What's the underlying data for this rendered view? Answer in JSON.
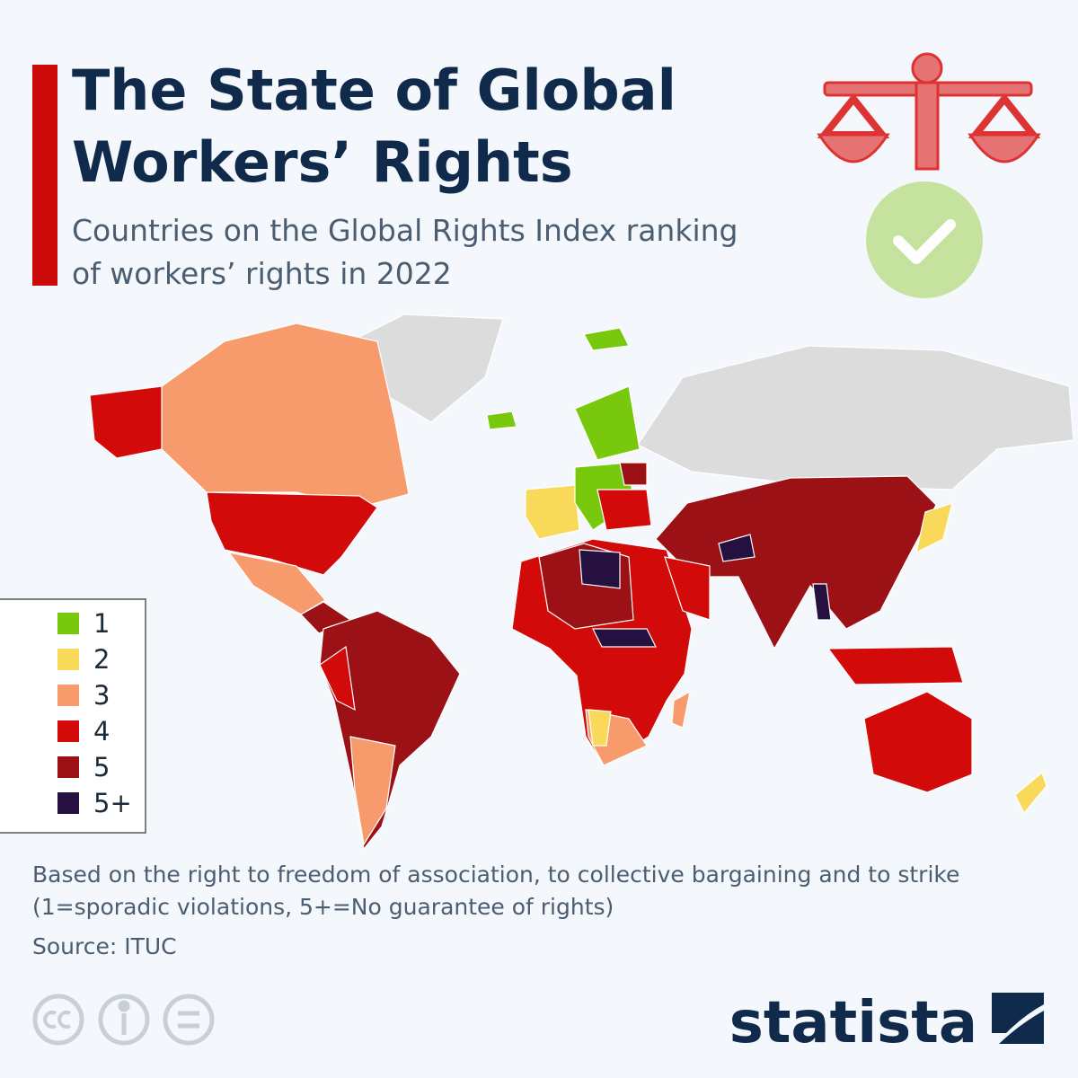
{
  "header": {
    "title_lines": [
      "The State of Global",
      "Workers’ Rights"
    ],
    "subtitle_lines": [
      "Countries on the Global Rights Index ranking",
      "of workers’ rights in 2022"
    ]
  },
  "legend": [
    {
      "label": "1",
      "color": "#78c80e"
    },
    {
      "label": "2",
      "color": "#f8d95a"
    },
    {
      "label": "3",
      "color": "#f79a6c"
    },
    {
      "label": "4",
      "color": "#d30a0a"
    },
    {
      "label": "5",
      "color": "#9c1116"
    },
    {
      "label": "5+",
      "color": "#25103f"
    }
  ],
  "footer": {
    "note_lines": [
      "Based on the right to freedom of association, to collective bargaining and to strike",
      "(1=sporadic violations, 5+=No guarantee of rights)"
    ],
    "source": "Source: ITUC",
    "brand": "statista"
  }
}
